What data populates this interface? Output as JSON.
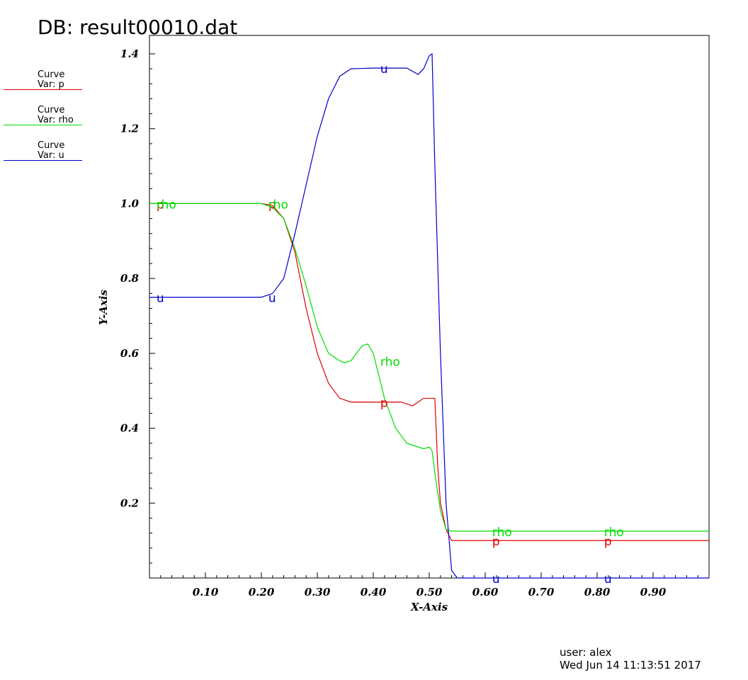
{
  "header": {
    "title": "DB: result00010.dat"
  },
  "legend": [
    {
      "line1": "Curve",
      "line2": "Var: p",
      "color": "#e00000"
    },
    {
      "line1": "Curve",
      "line2": "Var: rho",
      "color": "#00dd00"
    },
    {
      "line1": "Curve",
      "line2": "Var: u",
      "color": "#0000cc"
    }
  ],
  "footer": {
    "user": "user: alex",
    "date": "Wed Jun 14 11:13:51 2017"
  },
  "chart_data": {
    "type": "line",
    "xlabel": "X-Axis",
    "ylabel": "Y-Axis",
    "xlim": [
      0.0,
      1.0
    ],
    "ylim": [
      0.0,
      1.4
    ],
    "grid": false,
    "xticks": [
      "0.10",
      "0.20",
      "0.30",
      "0.40",
      "0.50",
      "0.60",
      "0.70",
      "0.80",
      "0.90"
    ],
    "yticks": [
      "0.2",
      "0.4",
      "0.6",
      "0.8",
      "1.0",
      "1.2",
      "1.4"
    ],
    "series": [
      {
        "name": "p",
        "color": "#e00000",
        "x": [
          0.0,
          0.2,
          0.22,
          0.24,
          0.26,
          0.28,
          0.3,
          0.32,
          0.34,
          0.36,
          0.4,
          0.45,
          0.47,
          0.48,
          0.49,
          0.5,
          0.51,
          0.515,
          0.52,
          0.53,
          0.54,
          0.6,
          1.0
        ],
        "y": [
          1.0,
          1.0,
          0.995,
          0.96,
          0.87,
          0.72,
          0.6,
          0.52,
          0.48,
          0.47,
          0.47,
          0.47,
          0.46,
          0.47,
          0.48,
          0.48,
          0.48,
          0.3,
          0.2,
          0.13,
          0.1,
          0.1,
          0.1
        ]
      },
      {
        "name": "rho",
        "color": "#00dd00",
        "x": [
          0.0,
          0.2,
          0.22,
          0.24,
          0.26,
          0.28,
          0.3,
          0.32,
          0.34,
          0.35,
          0.36,
          0.38,
          0.39,
          0.4,
          0.42,
          0.44,
          0.46,
          0.48,
          0.49,
          0.5,
          0.505,
          0.51,
          0.52,
          0.53,
          0.54,
          0.6,
          1.0
        ],
        "y": [
          1.0,
          1.0,
          0.99,
          0.96,
          0.88,
          0.78,
          0.67,
          0.6,
          0.58,
          0.575,
          0.58,
          0.62,
          0.625,
          0.6,
          0.48,
          0.4,
          0.36,
          0.35,
          0.345,
          0.35,
          0.34,
          0.28,
          0.18,
          0.13,
          0.125,
          0.125,
          0.125
        ]
      },
      {
        "name": "u",
        "color": "#0000cc",
        "x": [
          0.0,
          0.2,
          0.22,
          0.24,
          0.26,
          0.28,
          0.3,
          0.32,
          0.34,
          0.36,
          0.4,
          0.46,
          0.48,
          0.49,
          0.5,
          0.505,
          0.51,
          0.52,
          0.53,
          0.54,
          0.55,
          0.57,
          0.6,
          1.0
        ],
        "y": [
          0.75,
          0.75,
          0.76,
          0.8,
          0.92,
          1.05,
          1.18,
          1.28,
          1.34,
          1.36,
          1.362,
          1.362,
          1.345,
          1.36,
          1.395,
          1.4,
          1.1,
          0.6,
          0.2,
          0.02,
          0.0,
          0.0,
          0.0,
          0.0
        ]
      }
    ],
    "curve_labels": [
      {
        "text": "p",
        "series": "p",
        "x": 0.01,
        "y": 1.0
      },
      {
        "text": "p",
        "series": "p",
        "x": 0.21,
        "y": 1.0
      },
      {
        "text": "p",
        "series": "p",
        "x": 0.41,
        "y": 0.47
      },
      {
        "text": "p",
        "series": "p",
        "x": 0.61,
        "y": 0.1
      },
      {
        "text": "p",
        "series": "p",
        "x": 0.81,
        "y": 0.1
      },
      {
        "text": "rho",
        "series": "rho",
        "x": 0.01,
        "y": 1.0
      },
      {
        "text": "rho",
        "series": "rho",
        "x": 0.21,
        "y": 1.0
      },
      {
        "text": "rho",
        "series": "rho",
        "x": 0.41,
        "y": 0.58
      },
      {
        "text": "rho",
        "series": "rho",
        "x": 0.61,
        "y": 0.125
      },
      {
        "text": "rho",
        "series": "rho",
        "x": 0.81,
        "y": 0.125
      },
      {
        "text": "u",
        "series": "u",
        "x": 0.01,
        "y": 0.75
      },
      {
        "text": "u",
        "series": "u",
        "x": 0.21,
        "y": 0.75
      },
      {
        "text": "u",
        "series": "u",
        "x": 0.41,
        "y": 1.362
      },
      {
        "text": "u",
        "series": "u",
        "x": 0.61,
        "y": 0.0
      },
      {
        "text": "u",
        "series": "u",
        "x": 0.81,
        "y": 0.0
      }
    ]
  }
}
